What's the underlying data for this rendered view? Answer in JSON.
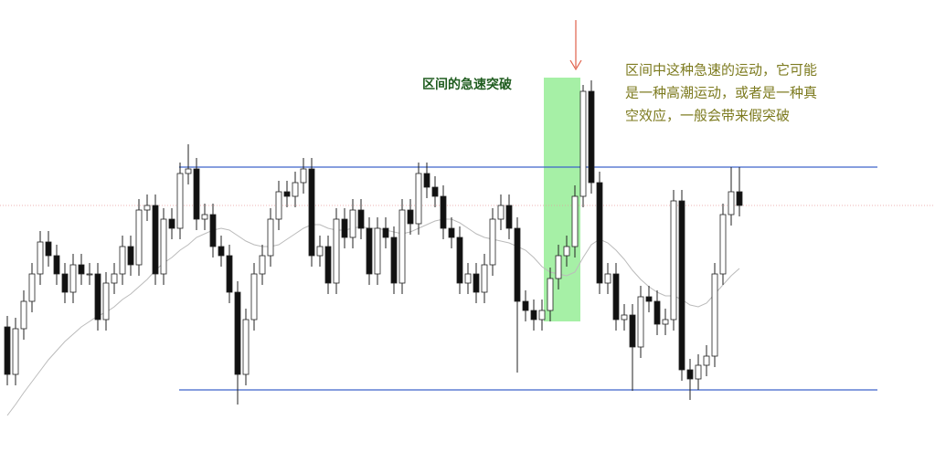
{
  "chart_data": {
    "type": "candlestick",
    "open": [
      160,
      108,
      158,
      188,
      218,
      253,
      238,
      218,
      198,
      228,
      218,
      218,
      168,
      208,
      218,
      248,
      228,
      288,
      293,
      218,
      278,
      268,
      328,
      333,
      278,
      283,
      248,
      238,
      198,
      108,
      168,
      218,
      238,
      278,
      308,
      303,
      318,
      333,
      238,
      248,
      208,
      278,
      258,
      288,
      268,
      218,
      268,
      258,
      208,
      288,
      273,
      328,
      313,
      303,
      268,
      258,
      208,
      218,
      198,
      228,
      278,
      293,
      268,
      188,
      178,
      168,
      178,
      213,
      238,
      248,
      303,
      418,
      318,
      208,
      218,
      168,
      173,
      138,
      193,
      188,
      163,
      168,
      298,
      113,
      103,
      118,
      128,
      218,
      283,
      308
    ],
    "high": [
      172,
      170,
      200,
      230,
      265,
      265,
      250,
      230,
      240,
      240,
      230,
      230,
      220,
      230,
      260,
      260,
      300,
      305,
      305,
      290,
      290,
      340,
      360,
      345,
      295,
      295,
      260,
      250,
      210,
      180,
      230,
      250,
      290,
      320,
      320,
      330,
      345,
      345,
      260,
      260,
      290,
      290,
      300,
      300,
      280,
      280,
      280,
      270,
      300,
      300,
      340,
      340,
      325,
      315,
      280,
      270,
      230,
      230,
      240,
      290,
      305,
      305,
      280,
      200,
      190,
      190,
      225,
      250,
      260,
      315,
      425,
      430,
      330,
      230,
      230,
      185,
      185,
      205,
      205,
      200,
      180,
      310,
      310,
      125,
      130,
      140,
      230,
      295,
      335,
      335
    ],
    "low": [
      96,
      96,
      146,
      176,
      206,
      226,
      206,
      186,
      186,
      206,
      206,
      156,
      156,
      196,
      206,
      216,
      216,
      276,
      206,
      206,
      256,
      256,
      316,
      266,
      266,
      236,
      226,
      186,
      75,
      96,
      156,
      206,
      226,
      266,
      291,
      291,
      306,
      226,
      226,
      196,
      196,
      246,
      246,
      256,
      206,
      206,
      246,
      196,
      196,
      261,
      261,
      301,
      291,
      256,
      246,
      196,
      196,
      186,
      186,
      216,
      266,
      256,
      110,
      166,
      156,
      156,
      166,
      201,
      226,
      236,
      291,
      306,
      196,
      196,
      156,
      156,
      90,
      126,
      176,
      151,
      151,
      156,
      101,
      80,
      91,
      106,
      116,
      206,
      271,
      281
    ],
    "close": [
      108,
      158,
      188,
      218,
      253,
      238,
      218,
      198,
      228,
      218,
      218,
      168,
      208,
      218,
      248,
      228,
      288,
      293,
      218,
      278,
      268,
      328,
      333,
      278,
      283,
      248,
      238,
      198,
      108,
      168,
      218,
      238,
      278,
      308,
      303,
      318,
      333,
      238,
      248,
      208,
      278,
      258,
      288,
      268,
      218,
      268,
      258,
      208,
      288,
      273,
      328,
      313,
      303,
      268,
      258,
      208,
      218,
      198,
      228,
      278,
      293,
      268,
      188,
      178,
      168,
      178,
      213,
      238,
      248,
      303,
      418,
      318,
      208,
      218,
      168,
      173,
      138,
      193,
      188,
      163,
      168,
      298,
      113,
      103,
      118,
      128,
      218,
      283,
      308,
      293
    ],
    "ma": [
      63,
      75,
      88,
      100,
      112,
      124,
      134,
      144,
      152,
      160,
      166,
      172,
      176,
      182,
      190,
      196,
      204,
      212,
      222,
      230,
      236,
      244,
      250,
      258,
      262,
      266,
      268,
      266,
      260,
      254,
      250,
      248,
      248,
      250,
      256,
      262,
      268,
      272,
      272,
      268,
      266,
      266,
      268,
      270,
      268,
      268,
      266,
      264,
      262,
      264,
      268,
      272,
      276,
      278,
      278,
      274,
      268,
      262,
      258,
      256,
      254,
      252,
      248,
      244,
      236,
      226,
      220,
      218,
      216,
      220,
      236,
      250,
      256,
      252,
      244,
      234,
      222,
      212,
      204,
      198,
      194,
      194,
      190,
      184,
      182,
      186,
      196,
      206,
      216,
      224
    ],
    "ylim": [
      0,
      518
    ],
    "hlines": [
      335,
      91
    ],
    "dotted_line": 293,
    "highlight_label": "区间的急速突破",
    "annotation": [
      "区间中这种急速的运动，它可能",
      "是一种高潮运动，或者是一种真",
      "空效应，一般会带来假突破"
    ]
  }
}
